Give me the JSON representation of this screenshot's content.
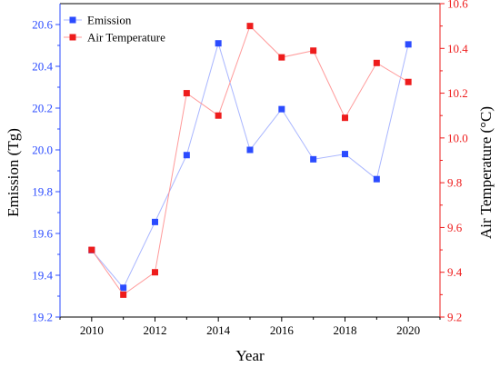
{
  "chart_data": {
    "type": "line",
    "xlabel": "Year",
    "x": [
      2010,
      2011,
      2012,
      2013,
      2014,
      2015,
      2016,
      2017,
      2018,
      2019,
      2020
    ],
    "xlim": [
      2009,
      2021
    ],
    "xticks": [
      "2010",
      "2012",
      "2014",
      "2016",
      "2018",
      "2020"
    ],
    "grid": false,
    "legend_position": "top-left",
    "left_axis": {
      "label": "Emission (Tg)",
      "lim": [
        19.2,
        20.7
      ],
      "ticks": [
        "19.2",
        "19.4",
        "19.6",
        "19.8",
        "20.0",
        "20.2",
        "20.4",
        "20.6"
      ],
      "color": "#2b4bff"
    },
    "right_axis": {
      "label": "Air Temperature (°C)",
      "lim": [
        9.2,
        10.6
      ],
      "ticks": [
        "9.2",
        "9.4",
        "9.6",
        "9.8",
        "10.0",
        "10.2",
        "10.4",
        "10.6"
      ],
      "color": "#ee1c1c"
    },
    "series": [
      {
        "name": "Emission",
        "axis": "left",
        "color": "#2b4bff",
        "line_color": "#a9b6ff",
        "values": [
          19.52,
          19.34,
          19.655,
          19.975,
          20.51,
          20.0,
          20.195,
          19.955,
          19.98,
          19.86,
          20.505
        ]
      },
      {
        "name": "Air Temperature",
        "axis": "right",
        "color": "#ee1c1c",
        "line_color": "#ff9a9a",
        "values": [
          9.5,
          9.3,
          9.4,
          10.2,
          10.1,
          10.5,
          10.36,
          10.39,
          10.09,
          10.335,
          10.25
        ]
      }
    ]
  }
}
